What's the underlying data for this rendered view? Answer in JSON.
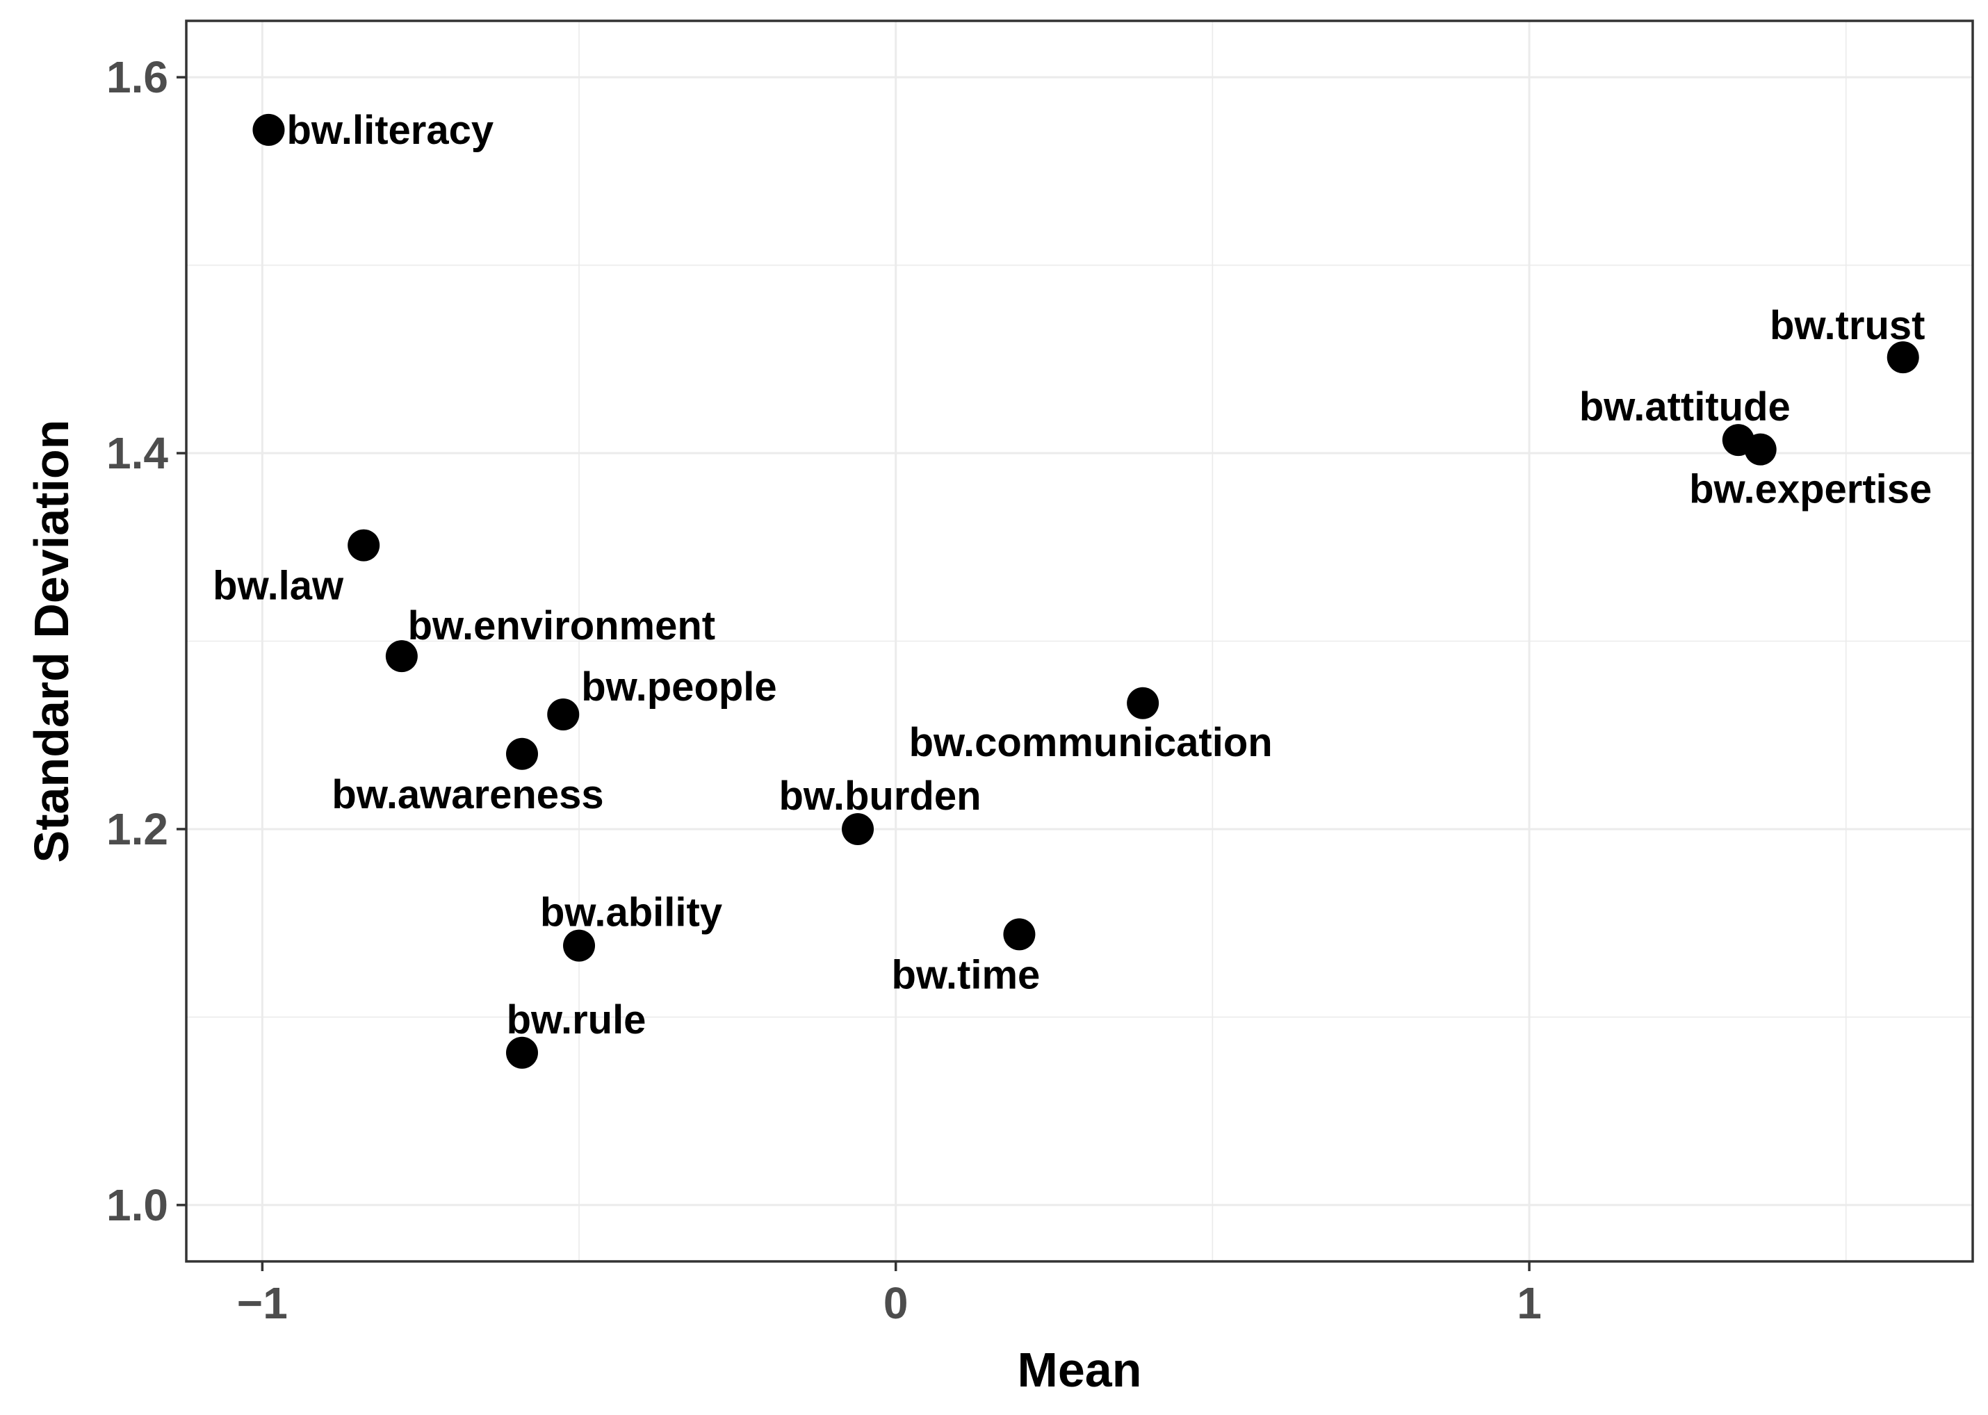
{
  "chart_data": {
    "type": "scatter",
    "title": "",
    "xlabel": "Mean",
    "ylabel": "Standard Deviation",
    "xlim": [
      -1.12,
      1.7
    ],
    "ylim": [
      0.97,
      1.63
    ],
    "x_ticks": [
      -1,
      0,
      1
    ],
    "x_tick_labels": [
      "−1",
      "0",
      "1"
    ],
    "y_ticks": [
      1.0,
      1.2,
      1.4,
      1.6
    ],
    "y_tick_labels": [
      "1.0",
      "1.2",
      "1.4",
      "1.6"
    ],
    "grid": true,
    "legend": "none",
    "point_color": "#000000",
    "points": [
      {
        "label": "bw.literacy",
        "x": -0.99,
        "y": 1.572,
        "label_pos": "right"
      },
      {
        "label": "bw.trust",
        "x": 1.59,
        "y": 1.451,
        "label_pos": "above-left"
      },
      {
        "label": "bw.attitude",
        "x": 1.33,
        "y": 1.407,
        "label_pos": "above"
      },
      {
        "label": "bw.expertise",
        "x": 1.365,
        "y": 1.402,
        "label_pos": "below"
      },
      {
        "label": "bw.law",
        "x": -0.84,
        "y": 1.351,
        "label_pos": "below-left"
      },
      {
        "label": "bw.environment",
        "x": -0.78,
        "y": 1.292,
        "label_pos": "above"
      },
      {
        "label": "bw.people",
        "x": -0.525,
        "y": 1.261,
        "label_pos": "above-right"
      },
      {
        "label": "bw.communication",
        "x": 0.39,
        "y": 1.267,
        "label_pos": "below-left"
      },
      {
        "label": "bw.awareness",
        "x": -0.59,
        "y": 1.24,
        "label_pos": "below-left"
      },
      {
        "label": "bw.burden",
        "x": -0.06,
        "y": 1.2,
        "label_pos": "above"
      },
      {
        "label": "bw.ability",
        "x": -0.5,
        "y": 1.138,
        "label_pos": "above"
      },
      {
        "label": "bw.time",
        "x": 0.195,
        "y": 1.144,
        "label_pos": "below-left"
      },
      {
        "label": "bw.rule",
        "x": -0.59,
        "y": 1.081,
        "label_pos": "above"
      }
    ]
  }
}
